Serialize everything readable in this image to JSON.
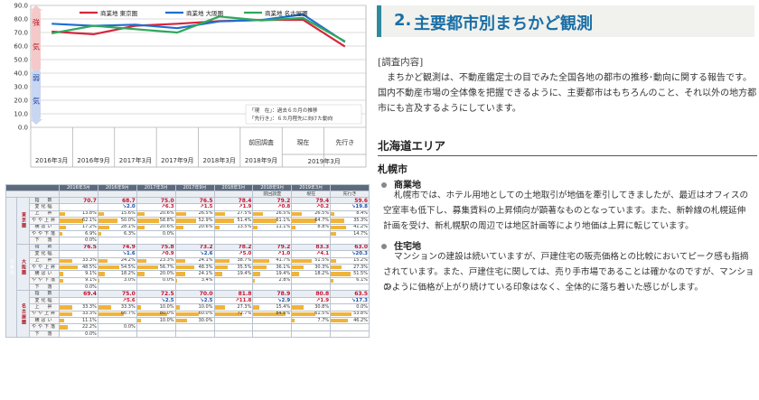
{
  "chart_data": {
    "type": "line",
    "x": [
      "2016年3月",
      "2016年9月",
      "2017年3月",
      "2017年9月",
      "2018年3月",
      "2018年9月",
      "2019年3月",
      "2019年3月 先行き"
    ],
    "x_display": [
      "2016年3月",
      "2016年9月",
      "2017年3月",
      "2017年9月",
      "2018年3月",
      "2018年9月",
      "2019年3月",
      ""
    ],
    "x_top_labels": [
      "",
      "",
      "",
      "",
      "",
      "前回調査",
      "現在",
      "先行き"
    ],
    "series": [
      {
        "name": "商業地 東京圏",
        "color": "#d7263d",
        "values": [
          70.7,
          68.7,
          75.0,
          76.5,
          78.4,
          79.2,
          79.4,
          59.6
        ]
      },
      {
        "name": "商業地 大阪圏",
        "color": "#1f6fd1",
        "values": [
          76.5,
          74.9,
          75.8,
          73.2,
          78.2,
          79.2,
          83.3,
          63.0
        ]
      },
      {
        "name": "商業地 名古屋圏",
        "color": "#2fa85a",
        "values": [
          69.4,
          75.0,
          72.5,
          70.0,
          81.8,
          78.9,
          80.8,
          63.5
        ]
      }
    ],
    "yticks": [
      "0.0",
      "10.0",
      "20.0",
      "30.0",
      "40.0",
      "50.0",
      "60.0",
      "70.0",
      "80.0",
      "90.0"
    ],
    "ylim": [
      0,
      90
    ],
    "grid": true,
    "legend": "top",
    "zone_labels": [
      "強",
      "気",
      "弱",
      "気"
    ],
    "note_lines": [
      "「現　在」：過去６カ月の推移",
      "「先行き」：６カ月程先に向けた動向"
    ],
    "year_group_label": "2019年3月"
  },
  "table": {
    "headers": [
      "2016年3月",
      "2016年9月",
      "2017年3月",
      "2017年9月",
      "2018年3月",
      "2018年9月",
      "2019年3月",
      ""
    ],
    "subheaders": [
      "",
      "",
      "",
      "",
      "",
      "前回調査",
      "現在",
      "先行き"
    ],
    "area_label": "商業地",
    "blocks": [
      {
        "city": "東京圏",
        "index": [
          "70.7",
          "68.7",
          "75.0",
          "76.5",
          "78.4",
          "79.2",
          "79.4",
          "59.6"
        ],
        "change": [
          {
            "t": "",
            "neg": false
          },
          {
            "t": "↘2.0",
            "neg": false
          },
          {
            "t": "↗6.3",
            "neg": true
          },
          {
            "t": "↗1.5",
            "neg": true
          },
          {
            "t": "↗1.9",
            "neg": true
          },
          {
            "t": "↗0.8",
            "neg": true
          },
          {
            "t": "↗0.2",
            "neg": true
          },
          {
            "t": "↘19.8",
            "neg": false
          }
        ],
        "rows": [
          {
            "label": "上　昇",
            "values": [
              "13.8%",
              "15.6%",
              "20.6%",
              "26.5%",
              "27.5%",
              "26.5%",
              "26.5%",
              "8.4%"
            ]
          },
          {
            "label": "やや上昇",
            "values": [
              "62.1%",
              "50.0%",
              "58.8%",
              "52.9%",
              "51.4%",
              "61.1%",
              "64.7%",
              "35.3%"
            ]
          },
          {
            "label": "横ばい",
            "values": [
              "17.2%",
              "28.1%",
              "20.6%",
              "20.6%",
              "13.5%",
              "11.1%",
              "8.8%",
              "41.2%"
            ]
          },
          {
            "label": "やや下落",
            "values": [
              "6.9%",
              "6.3%",
              "0.0%",
              "",
              "",
              "",
              "",
              "14.7%"
            ]
          },
          {
            "label": "下　落",
            "values": [
              "0.0%",
              "",
              "",
              "",
              "",
              "",
              "",
              ""
            ]
          }
        ]
      },
      {
        "city": "大阪圏",
        "index": [
          "76.5",
          "74.9",
          "75.8",
          "73.2",
          "78.2",
          "79.2",
          "83.3",
          "63.0"
        ],
        "change": [
          {
            "t": "",
            "neg": false
          },
          {
            "t": "↘1.6",
            "neg": false
          },
          {
            "t": "↗0.9",
            "neg": true
          },
          {
            "t": "↘2.6",
            "neg": false
          },
          {
            "t": "↗5.0",
            "neg": true
          },
          {
            "t": "↗1.0",
            "neg": true
          },
          {
            "t": "↗4.1",
            "neg": true
          },
          {
            "t": "↘20.3",
            "neg": false
          }
        ],
        "rows": [
          {
            "label": "上　昇",
            "values": [
              "33.3%",
              "24.2%",
              "23.3%",
              "24.1%",
              "38.7%",
              "41.7%",
              "51.5%",
              "15.2%"
            ]
          },
          {
            "label": "やや上昇",
            "values": [
              "48.5%",
              "54.5%",
              "56.7%",
              "48.3%",
              "35.5%",
              "36.1%",
              "30.3%",
              "27.3%"
            ]
          },
          {
            "label": "横ばい",
            "values": [
              "9.1%",
              "18.2%",
              "20.0%",
              "24.1%",
              "19.4%",
              "19.4%",
              "18.2%",
              "51.5%"
            ]
          },
          {
            "label": "やや下落",
            "values": [
              "9.1%",
              "3.0%",
              "0.0%",
              "3.4%",
              "",
              "2.8%",
              "",
              "6.1%"
            ]
          },
          {
            "label": "下　落",
            "values": [
              "0.0%",
              "",
              "",
              "",
              "",
              "",
              "",
              ""
            ]
          }
        ]
      },
      {
        "city": "名古屋圏",
        "index": [
          "69.4",
          "75.0",
          "72.5",
          "70.0",
          "81.8",
          "78.9",
          "80.8",
          "63.5"
        ],
        "change": [
          {
            "t": "",
            "neg": false
          },
          {
            "t": "↗5.6",
            "neg": true
          },
          {
            "t": "↘2.5",
            "neg": false
          },
          {
            "t": "↘2.5",
            "neg": false
          },
          {
            "t": "↗11.8",
            "neg": true
          },
          {
            "t": "↘2.9",
            "neg": false
          },
          {
            "t": "↗1.9",
            "neg": true
          },
          {
            "t": "↘17.3",
            "neg": false
          }
        ],
        "rows": [
          {
            "label": "上　昇",
            "values": [
              "33.3%",
              "33.3%",
              "10.0%",
              "10.0%",
              "27.3%",
              "15.4%",
              "30.8%",
              "0.0%"
            ]
          },
          {
            "label": "やや上昇",
            "values": [
              "33.3%",
              "66.7%",
              "80.0%",
              "60.0%",
              "72.7%",
              "84.6%",
              "61.5%",
              "53.8%"
            ]
          },
          {
            "label": "横ばい",
            "values": [
              "11.1%",
              "",
              "10.0%",
              "30.0%",
              "",
              "",
              "7.7%",
              "46.2%"
            ]
          },
          {
            "label": "やや下落",
            "values": [
              "22.2%",
              "0.0%",
              "",
              "",
              "",
              "",
              "",
              ""
            ]
          },
          {
            "label": "下　落",
            "values": [
              "0.0%",
              "",
              "",
              "",
              "",
              "",
              "",
              ""
            ]
          }
        ]
      }
    ]
  },
  "section": {
    "number": "2.",
    "title": "主要都市別まちかど観測",
    "survey_label": "[調査内容]",
    "survey_lines": [
      "　まちかど観測は、不動産鑑定士の目でみた全国各地の都市の推移･動向に関する報告です。",
      "国内不動産市場の全体像を把握できるように、主要都市はもちろんのこと、それ以外の地方都",
      "市にも言及するようにしています。"
    ],
    "area": "北海道エリア",
    "city": "札幌市",
    "commercial": {
      "label": "商業地",
      "lines": [
        "札幌市では、ホテル用地としての土地取引が地価を牽引してきましたが、最近はオフィスの",
        "空室率も低下し、募集賃料の上昇傾向が顕著なものとなっています。また、新幹線の札幌延伸",
        "計画を受け、新札幌駅の周辺では地区計画等により地価は上昇に転じています。"
      ]
    },
    "residential": {
      "label": "住宅地",
      "lines": [
        "マンションの建設は続いていますが、戸建住宅の販売価格との比較においてピーク感も指摘",
        "されています。また、戸建住宅に関しては、売り手市場であることは確かなのですが、マンション",
        "のように価格が上がり続けている印象はなく、全体的に落ち着いた感じがします。"
      ]
    }
  }
}
